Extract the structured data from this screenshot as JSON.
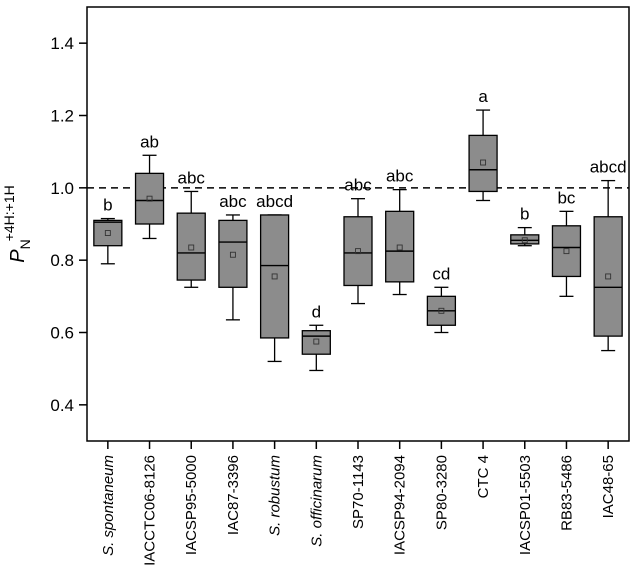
{
  "chart_data": {
    "type": "box",
    "ylabel": {
      "main": "P",
      "subscript": "N",
      "superscript": "+4H:+1H"
    },
    "ylim": [
      0.3,
      1.5
    ],
    "yticks": [
      "0.4",
      "0.6",
      "0.8",
      "1.0",
      "1.2",
      "1.4"
    ],
    "yticks_values": [
      0.4,
      0.6,
      0.8,
      1.0,
      1.2,
      1.4
    ],
    "reference_line": 1.0,
    "colors": {
      "box_fill": "#8c8c8c",
      "line": "#000000",
      "background": "#ffffff"
    },
    "series": [
      {
        "category": "S. spontaneum",
        "italic": true,
        "whisker_low": 0.79,
        "q1": 0.84,
        "median": 0.905,
        "q3": 0.91,
        "whisker_high": 0.915,
        "mean": 0.875,
        "letter": "b"
      },
      {
        "category": "IACCTC06-8126",
        "italic": false,
        "whisker_low": 0.86,
        "q1": 0.9,
        "median": 0.965,
        "q3": 1.04,
        "whisker_high": 1.09,
        "mean": 0.97,
        "letter": "ab"
      },
      {
        "category": "IACSP95-5000",
        "italic": false,
        "whisker_low": 0.725,
        "q1": 0.745,
        "median": 0.82,
        "q3": 0.93,
        "whisker_high": 0.99,
        "mean": 0.835,
        "letter": "abc"
      },
      {
        "category": "IAC87-3396",
        "italic": false,
        "whisker_low": 0.635,
        "q1": 0.725,
        "median": 0.85,
        "q3": 0.91,
        "whisker_high": 0.925,
        "mean": 0.815,
        "letter": "abc"
      },
      {
        "category": "S. robustum",
        "italic": true,
        "whisker_low": 0.52,
        "q1": 0.585,
        "median": 0.785,
        "q3": 0.925,
        "whisker_high": 0.925,
        "mean": 0.755,
        "letter": "abcd"
      },
      {
        "category": "S. officinarum",
        "italic": true,
        "whisker_low": 0.495,
        "q1": 0.54,
        "median": 0.59,
        "q3": 0.605,
        "whisker_high": 0.62,
        "mean": 0.575,
        "letter": "d"
      },
      {
        "category": "SP70-1143",
        "italic": false,
        "whisker_low": 0.68,
        "q1": 0.73,
        "median": 0.82,
        "q3": 0.92,
        "whisker_high": 0.97,
        "mean": 0.825,
        "letter": "abc"
      },
      {
        "category": "IACSP94-2094",
        "italic": false,
        "whisker_low": 0.705,
        "q1": 0.74,
        "median": 0.825,
        "q3": 0.935,
        "whisker_high": 0.995,
        "mean": 0.835,
        "letter": "abc"
      },
      {
        "category": "SP80-3280",
        "italic": false,
        "whisker_low": 0.6,
        "q1": 0.62,
        "median": 0.66,
        "q3": 0.7,
        "whisker_high": 0.725,
        "mean": 0.66,
        "letter": "cd"
      },
      {
        "category": "CTC 4",
        "italic": false,
        "whisker_low": 0.965,
        "q1": 0.99,
        "median": 1.05,
        "q3": 1.145,
        "whisker_high": 1.215,
        "mean": 1.07,
        "letter": "a"
      },
      {
        "category": "IACSP01-5503",
        "italic": false,
        "whisker_low": 0.84,
        "q1": 0.845,
        "median": 0.855,
        "q3": 0.87,
        "whisker_high": 0.89,
        "mean": 0.855,
        "letter": "b"
      },
      {
        "category": "RB83-5486",
        "italic": false,
        "whisker_low": 0.7,
        "q1": 0.755,
        "median": 0.835,
        "q3": 0.895,
        "whisker_high": 0.935,
        "mean": 0.825,
        "letter": "bc"
      },
      {
        "category": "IAC48-65",
        "italic": false,
        "whisker_low": 0.55,
        "q1": 0.59,
        "median": 0.725,
        "q3": 0.92,
        "whisker_high": 1.02,
        "mean": 0.755,
        "letter": "abcd"
      }
    ]
  }
}
